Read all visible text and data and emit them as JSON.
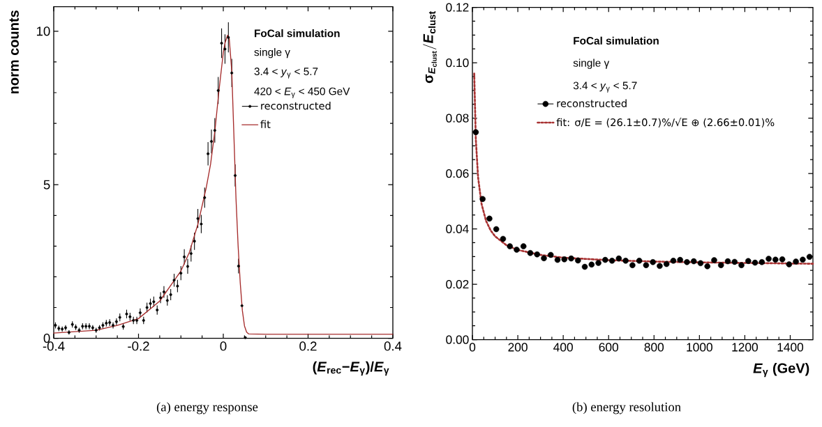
{
  "chart_data": [
    {
      "type": "scatter",
      "xlabel": "(*E*$_{rec}$−*E*$_{γ}$)/*E*$_{γ}$",
      "ylabel": "norm counts",
      "annotations": [
        "FoCal simulation",
        "single γ",
        "3.4 < *y*$_{γ}$ < 5.7",
        "420 < *E*$_{γ}$ < 450 GeV",
        "(a)  energy response"
      ],
      "xlim": [
        -0.4,
        0.4
      ],
      "ylim": [
        0,
        10.8
      ],
      "xticks": [
        -0.4,
        -0.2,
        0,
        0.2,
        0.4
      ],
      "yticks": [
        0,
        5,
        10
      ],
      "legend": "top right",
      "x": [
        -0.396,
        -0.388,
        -0.38,
        -0.372,
        -0.364,
        -0.356,
        -0.348,
        -0.34,
        -0.332,
        -0.324,
        -0.316,
        -0.308,
        -0.3,
        -0.292,
        -0.284,
        -0.276,
        -0.268,
        -0.26,
        -0.252,
        -0.244,
        -0.236,
        -0.228,
        -0.22,
        -0.212,
        -0.204,
        -0.196,
        -0.188,
        -0.18,
        -0.172,
        -0.164,
        -0.156,
        -0.148,
        -0.14,
        -0.132,
        -0.124,
        -0.116,
        -0.108,
        -0.1,
        -0.092,
        -0.084,
        -0.076,
        -0.068,
        -0.06,
        -0.052,
        -0.044,
        -0.036,
        -0.028,
        -0.02,
        -0.012,
        -0.004,
        0.004,
        0.012,
        0.02,
        0.028,
        0.036,
        0.044,
        0.052
      ],
      "series": [
        {
          "name": "reconstructed",
          "color": "#000000",
          "marker": "circle",
          "values": [
            0.42,
            0.32,
            0.3,
            0.34,
            0.19,
            0.45,
            0.36,
            0.26,
            0.39,
            0.39,
            0.39,
            0.34,
            0.26,
            0.34,
            0.42,
            0.49,
            0.51,
            0.42,
            0.54,
            0.68,
            0.38,
            0.79,
            0.7,
            0.58,
            0.58,
            0.83,
            0.58,
            1.0,
            1.13,
            1.19,
            0.92,
            1.32,
            1.51,
            1.23,
            1.42,
            1.89,
            1.7,
            2.12,
            2.65,
            2.34,
            2.76,
            3.16,
            3.9,
            3.72,
            4.58,
            6.01,
            6.41,
            6.77,
            8.07,
            9.61,
            9.42,
            9.8,
            8.64,
            5.3,
            2.35,
            1.06,
            0.02
          ],
          "errors": [
            0.1,
            0.09,
            0.08,
            0.09,
            0.07,
            0.1,
            0.09,
            0.08,
            0.1,
            0.1,
            0.1,
            0.09,
            0.08,
            0.09,
            0.1,
            0.11,
            0.11,
            0.1,
            0.11,
            0.13,
            0.1,
            0.14,
            0.13,
            0.12,
            0.12,
            0.14,
            0.12,
            0.16,
            0.16,
            0.17,
            0.15,
            0.18,
            0.19,
            0.17,
            0.18,
            0.21,
            0.2,
            0.23,
            0.25,
            0.24,
            0.26,
            0.28,
            0.31,
            0.3,
            0.33,
            0.38,
            0.39,
            0.4,
            0.44,
            0.48,
            0.48,
            0.49,
            0.46,
            0.36,
            0.24,
            null,
            0.02
          ]
        },
        {
          "name": "fit",
          "type": "line",
          "color": "#a52a2a",
          "line_style": "solid",
          "x": [
            -0.4,
            -0.3,
            -0.25,
            -0.2,
            -0.15,
            -0.1,
            -0.08,
            -0.06,
            -0.04,
            -0.03,
            -0.02,
            -0.01,
            0,
            0.004,
            0.01,
            0.014,
            0.02,
            0.03,
            0.035,
            0.04,
            0.045,
            0.05,
            0.055,
            0.06,
            0.1,
            0.4
          ],
          "values": [
            0.17,
            0.26,
            0.42,
            0.64,
            1.21,
            2.19,
            2.8,
            3.71,
            4.92,
            5.67,
            6.73,
            8.09,
            9.3,
            9.61,
            9.87,
            9.76,
            8.7,
            4.54,
            3.0,
            1.8,
            0.9,
            0.4,
            0.2,
            0.14,
            0.13,
            0.13
          ]
        }
      ]
    },
    {
      "type": "scatter",
      "xlabel": "*E*$_{γ}$ (GeV)",
      "ylabel": "\\text{σ}_{\\text{\\textit{E}}_{\\text{clust}}}/\\text{\\textit{E}}_{\\text{clust}}",
      "annotations": [
        "FoCal simulation",
        "single γ",
        "3.4 < *y*$_{γ}$ < 5.7",
        "(b)  energy resolution"
      ],
      "xlim": [
        0,
        1500
      ],
      "ylim": [
        0,
        0.12
      ],
      "xticks": [
        0,
        200,
        400,
        600,
        800,
        1000,
        1200,
        1400
      ],
      "yticks": [
        {
          "value": 0,
          "label": "0.00"
        },
        0.02,
        0.04,
        0.06,
        0.08,
        {
          "value": 0.1,
          "label": "0.10"
        },
        0.12
      ],
      "legend": "top left",
      "x": [
        15,
        45,
        75,
        105,
        135,
        165,
        195,
        225,
        255,
        285,
        315,
        345,
        375,
        405,
        435,
        465,
        495,
        525,
        555,
        585,
        615,
        645,
        675,
        705,
        735,
        765,
        795,
        825,
        855,
        885,
        915,
        945,
        975,
        1005,
        1035,
        1065,
        1095,
        1125,
        1155,
        1185,
        1215,
        1245,
        1275,
        1305,
        1335,
        1365,
        1395,
        1425,
        1455,
        1485
      ],
      "series": [
        {
          "name": "reconstructed",
          "color": "#000000",
          "marker": "circle",
          "values": [
            0.0749,
            0.0508,
            0.0437,
            0.0399,
            0.0364,
            0.0337,
            0.0325,
            0.0337,
            0.0313,
            0.0308,
            0.0294,
            0.0306,
            0.0288,
            0.029,
            0.0293,
            0.0286,
            0.0263,
            0.0271,
            0.0277,
            0.0288,
            0.0285,
            0.0293,
            0.0285,
            0.0269,
            0.0285,
            0.0269,
            0.028,
            0.0266,
            0.0273,
            0.0285,
            0.0288,
            0.028,
            0.0283,
            0.0276,
            0.0265,
            0.0287,
            0.0269,
            0.0283,
            0.0281,
            0.0269,
            0.0284,
            0.0278,
            0.028,
            0.0292,
            0.0289,
            0.029,
            0.0272,
            0.0282,
            0.0289,
            0.0299
          ]
        },
        {
          "name": "fit: σ/E = (26.1±0.7)%/√E ⊕ (2.66±0.01)%",
          "type": "line",
          "color": "#a83232",
          "line_style": "dotted",
          "x": [
            8,
            15,
            25,
            40,
            60,
            80,
            100,
            150,
            200,
            300,
            400,
            600,
            800,
            1000,
            1200,
            1500
          ],
          "values": [
            0.0961,
            0.0724,
            0.0586,
            0.0491,
            0.0429,
            0.0395,
            0.0373,
            0.0341,
            0.0324,
            0.0306,
            0.0296,
            0.0287,
            0.0282,
            0.0279,
            0.0277,
            0.0274
          ]
        }
      ]
    }
  ]
}
